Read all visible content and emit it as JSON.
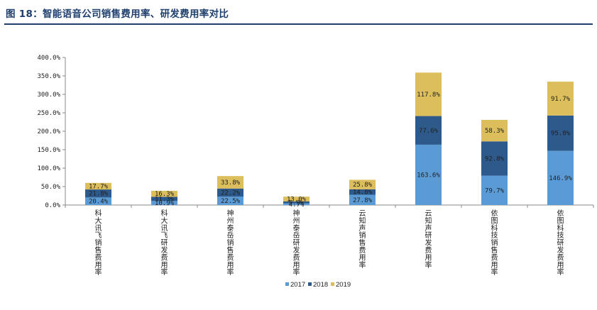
{
  "figure": {
    "title": "图 18：智能语音公司销售费用率、研发费用率对比"
  },
  "colors": {
    "title": "#1f3f6e",
    "series_2017": "#5b9bd5",
    "series_2018": "#2d5a8a",
    "series_2019": "#dcbf5c"
  },
  "chart_data": {
    "type": "bar",
    "stacked": true,
    "title": "",
    "xlabel": "",
    "ylabel": "",
    "ylim": [
      0,
      400
    ],
    "yticks": [
      "0.0%",
      "50.0%",
      "100.0%",
      "150.0%",
      "200.0%",
      "250.0%",
      "300.0%",
      "350.0%",
      "400.0%"
    ],
    "grid": false,
    "legend_position": "bottom-center",
    "categories": [
      "科大讯飞销售费用率",
      "科大讯飞研发费用率",
      "神州泰岳销售费用率",
      "神州泰岳研发费用率",
      "云知声销售费用率",
      "云知声研发费用率",
      "依图科技销售费用率",
      "依图科技研发费用率"
    ],
    "series": [
      {
        "name": "2017",
        "values": [
          20.4,
          10.9,
          22.5,
          4.7,
          27.8,
          163.6,
          79.7,
          146.9
        ],
        "labels": [
          "20.4%",
          "10.9%",
          "22.5%",
          "4.7%",
          "27.8%",
          "163.6%",
          "79.7%",
          "146.9%"
        ]
      },
      {
        "name": "2018",
        "values": [
          21.8,
          11.3,
          22.2,
          5.0,
          14.8,
          77.6,
          92.8,
          95.8
        ],
        "labels": [
          "21.8%",
          "11.3%",
          "22.2%",
          "5.0%",
          "14.8%",
          "77.6%",
          "92.8%",
          "95.8%"
        ]
      },
      {
        "name": "2019",
        "values": [
          17.7,
          16.3,
          33.8,
          13.0,
          25.8,
          117.8,
          58.3,
          91.7
        ],
        "labels": [
          "17.7%",
          "16.3%",
          "33.8%",
          "13.0%",
          "25.8%",
          "117.8%",
          "58.3%",
          "91.7%"
        ]
      }
    ]
  }
}
